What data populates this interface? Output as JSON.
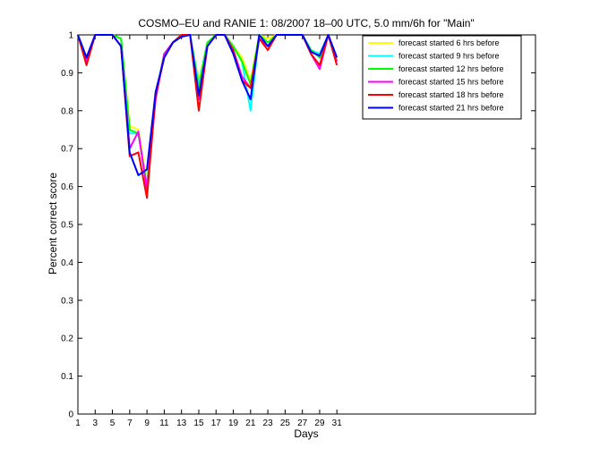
{
  "chart_data": {
    "type": "line",
    "title": "COSMO–EU and RANIE 1: 08/2007 18–00 UTC, 5.0 mm/6h for \"Main\"",
    "xlabel": "Days",
    "ylabel": "Percent correct score",
    "xlim": [
      1,
      54
    ],
    "ylim": [
      0,
      1
    ],
    "xticks": [
      "1",
      "3",
      "5",
      "7",
      "9",
      "11",
      "13",
      "15",
      "17",
      "19",
      "21",
      "23",
      "25",
      "27",
      "29",
      "31"
    ],
    "yticks": [
      "0",
      "0.1",
      "0.2",
      "0.3",
      "0.4",
      "0.5",
      "0.6",
      "0.7",
      "0.8",
      "0.9",
      "1"
    ],
    "grid": false,
    "legend_position": "top-right",
    "x": [
      1,
      2,
      3,
      4,
      5,
      6,
      7,
      8,
      9,
      10,
      11,
      12,
      13,
      14,
      15,
      16,
      17,
      18,
      19,
      20,
      21,
      22,
      23,
      24,
      25,
      26,
      27,
      28,
      29,
      30,
      31
    ],
    "series": [
      {
        "name": "forecast started 6 hrs before",
        "color": "#ffff00",
        "values": [
          1.0,
          0.94,
          1.0,
          1.0,
          1.0,
          0.99,
          0.76,
          0.75,
          0.61,
          0.84,
          0.95,
          0.98,
          1.0,
          1.0,
          0.88,
          0.98,
          1.0,
          1.0,
          0.97,
          0.94,
          0.88,
          1.0,
          0.99,
          1.0,
          1.0,
          1.0,
          1.0,
          0.96,
          0.95,
          1.0,
          0.94
        ]
      },
      {
        "name": "forecast started 9 hrs before",
        "color": "#00ffff",
        "values": [
          1.0,
          0.94,
          1.0,
          1.0,
          1.0,
          0.99,
          0.74,
          0.74,
          0.6,
          0.84,
          0.95,
          0.98,
          1.0,
          1.0,
          0.87,
          0.98,
          1.0,
          1.0,
          0.97,
          0.93,
          0.8,
          1.0,
          0.98,
          1.0,
          1.0,
          1.0,
          1.0,
          0.96,
          0.95,
          1.0,
          0.94
        ]
      },
      {
        "name": "forecast started 12 hrs before",
        "color": "#00ff00",
        "values": [
          1.0,
          0.93,
          1.0,
          1.0,
          1.0,
          0.99,
          0.75,
          0.74,
          0.6,
          0.84,
          0.95,
          0.98,
          1.0,
          1.0,
          0.86,
          0.98,
          1.0,
          1.0,
          0.97,
          0.93,
          0.87,
          1.0,
          0.98,
          1.0,
          1.0,
          1.0,
          1.0,
          0.96,
          0.94,
          1.0,
          0.93
        ]
      },
      {
        "name": "forecast started 15 hrs before",
        "color": "#ff00ff",
        "values": [
          1.0,
          0.93,
          1.0,
          1.0,
          1.0,
          0.97,
          0.7,
          0.745,
          0.59,
          0.83,
          0.95,
          0.98,
          1.0,
          1.0,
          0.83,
          0.97,
          1.0,
          1.0,
          0.96,
          0.89,
          0.86,
          0.99,
          0.97,
          1.0,
          1.0,
          1.0,
          1.0,
          0.95,
          0.91,
          1.0,
          0.93
        ]
      },
      {
        "name": "forecast started 18 hrs before",
        "color": "#ff0000",
        "values": [
          1.0,
          0.92,
          1.0,
          1.0,
          1.0,
          0.97,
          0.68,
          0.69,
          0.57,
          0.84,
          0.94,
          0.98,
          1.0,
          1.0,
          0.8,
          0.97,
          1.0,
          1.0,
          0.96,
          0.88,
          0.86,
          0.99,
          0.96,
          1.0,
          1.0,
          1.0,
          1.0,
          0.95,
          0.92,
          1.0,
          0.92
        ]
      },
      {
        "name": "forecast started 21 hrs before",
        "color": "#0000ff",
        "values": [
          1.0,
          0.94,
          1.0,
          1.0,
          1.0,
          0.97,
          0.69,
          0.63,
          0.645,
          0.85,
          0.94,
          0.98,
          0.995,
          1.0,
          0.84,
          0.97,
          1.0,
          1.0,
          0.95,
          0.88,
          0.83,
          1.0,
          0.97,
          1.0,
          1.0,
          1.0,
          1.0,
          0.955,
          0.945,
          1.0,
          0.94
        ]
      }
    ]
  }
}
